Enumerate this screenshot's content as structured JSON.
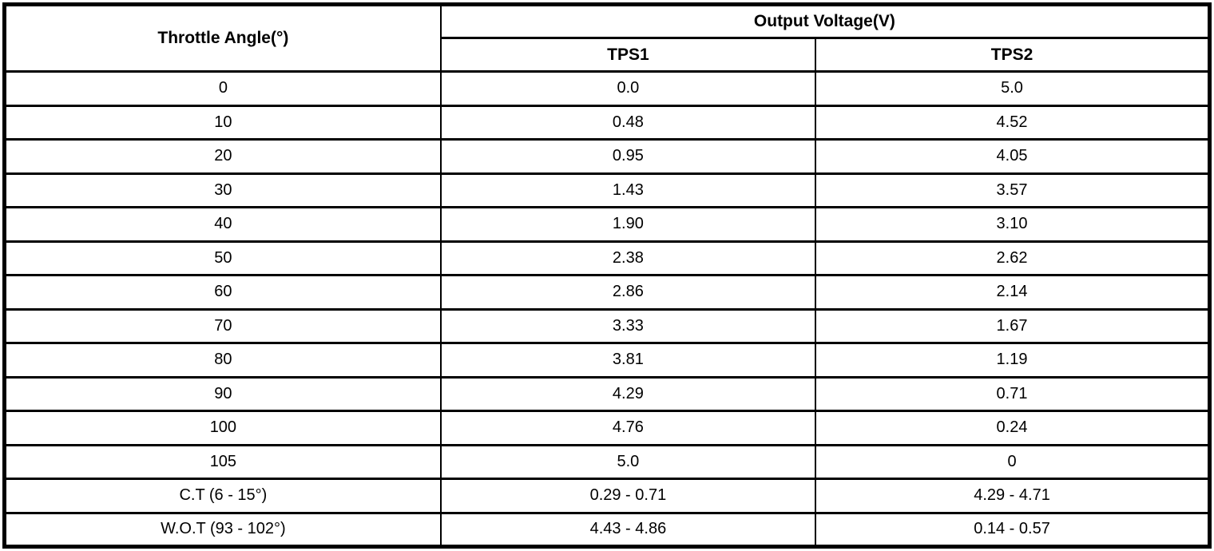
{
  "table": {
    "header": {
      "throttle_angle": "Throttle Angle(°)",
      "output_voltage": "Output Voltage(V)",
      "tps1": "TPS1",
      "tps2": "TPS2"
    },
    "rows": [
      {
        "angle": "0",
        "tps1": "0.0",
        "tps2": "5.0"
      },
      {
        "angle": "10",
        "tps1": "0.48",
        "tps2": "4.52"
      },
      {
        "angle": "20",
        "tps1": "0.95",
        "tps2": "4.05"
      },
      {
        "angle": "30",
        "tps1": "1.43",
        "tps2": "3.57"
      },
      {
        "angle": "40",
        "tps1": "1.90",
        "tps2": "3.10"
      },
      {
        "angle": "50",
        "tps1": "2.38",
        "tps2": "2.62"
      },
      {
        "angle": "60",
        "tps1": "2.86",
        "tps2": "2.14"
      },
      {
        "angle": "70",
        "tps1": "3.33",
        "tps2": "1.67"
      },
      {
        "angle": "80",
        "tps1": "3.81",
        "tps2": "1.19"
      },
      {
        "angle": "90",
        "tps1": "4.29",
        "tps2": "0.71"
      },
      {
        "angle": "100",
        "tps1": "4.76",
        "tps2": "0.24"
      },
      {
        "angle": "105",
        "tps1": "5.0",
        "tps2": "0"
      },
      {
        "angle": "C.T (6 - 15°)",
        "tps1": "0.29 - 0.71",
        "tps2": "4.29 - 4.71"
      },
      {
        "angle": "W.O.T (93 - 102°)",
        "tps1": "4.43 - 4.86",
        "tps2": "0.14 - 0.57"
      }
    ],
    "colors": {
      "border": "#000000",
      "background": "#ffffff",
      "text": "#000000"
    }
  }
}
